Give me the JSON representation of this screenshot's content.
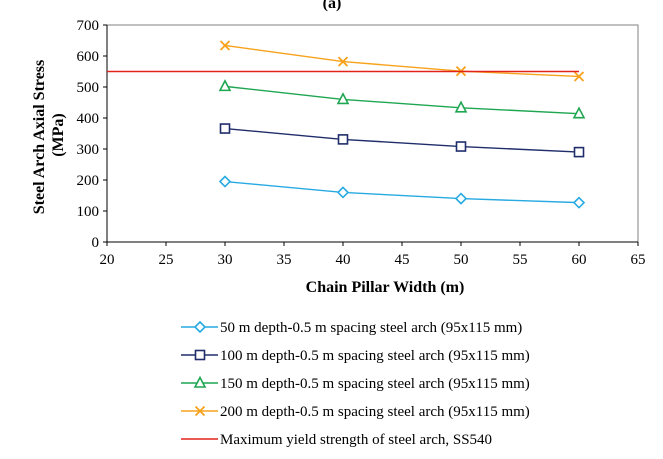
{
  "chart_data": {
    "type": "line",
    "panel_label": "(a)",
    "xlabel": "Chain Pillar Width (m)",
    "ylabel_lines": [
      "Steel Arch Axial Stress",
      "(MPa)"
    ],
    "xlim": [
      20,
      65
    ],
    "ylim": [
      0,
      700
    ],
    "x_ticks": [
      20,
      25,
      30,
      35,
      40,
      45,
      50,
      55,
      60,
      65
    ],
    "y_ticks": [
      0,
      100,
      200,
      300,
      400,
      500,
      600,
      700
    ],
    "grid": false,
    "legend_position": "bottom",
    "series": [
      {
        "name": "50 m depth-0.5 m spacing steel arch (95x115 mm)",
        "marker": "diamond",
        "color": "#27aae1",
        "x": [
          30,
          40,
          50,
          60
        ],
        "y": [
          195,
          160,
          140,
          127
        ]
      },
      {
        "name": "100 m depth-0.5 m spacing steel arch (95x115 mm)",
        "marker": "square",
        "color": "#1f2d6b",
        "x": [
          30,
          40,
          50,
          60
        ],
        "y": [
          366,
          331,
          308,
          290
        ]
      },
      {
        "name": "150 m depth-0.5 m spacing steel arch (95x115 mm)",
        "marker": "triangle",
        "color": "#1fa651",
        "x": [
          30,
          40,
          50,
          60
        ],
        "y": [
          502,
          460,
          433,
          414
        ]
      },
      {
        "name": "200 m depth-0.5 m spacing steel arch (95x115 mm)",
        "marker": "x",
        "color": "#f7a21b",
        "x": [
          30,
          40,
          50,
          60
        ],
        "y": [
          634,
          582,
          551,
          534
        ]
      },
      {
        "name": "Maximum yield strength of steel arch, SS540",
        "marker": "none",
        "color": "#e2231a",
        "x": [
          20,
          60
        ],
        "y": [
          550,
          550
        ]
      }
    ]
  }
}
